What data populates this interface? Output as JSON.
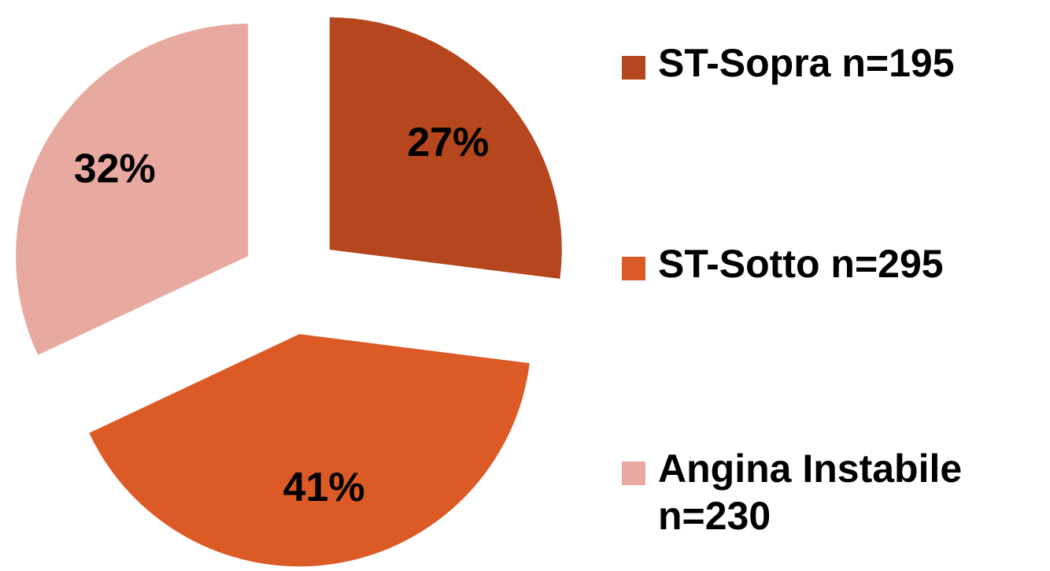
{
  "chart_data": {
    "type": "pie",
    "categories": [
      "ST-Sopra n=195",
      "ST-Sotto n=295",
      "Angina Instabile n=230"
    ],
    "values": [
      27,
      41,
      32
    ],
    "value_labels": [
      "27%",
      "41%",
      "32%"
    ],
    "colors": [
      "#b5461d",
      "#dc5a26",
      "#e8aaa0"
    ],
    "legend": "right"
  }
}
